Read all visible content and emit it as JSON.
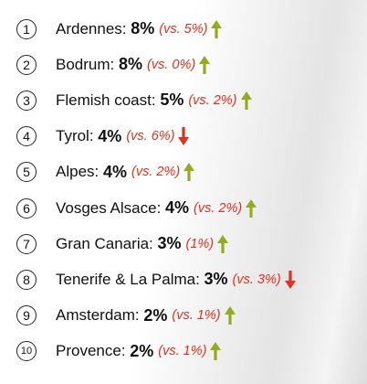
{
  "items": [
    {
      "rank": "1",
      "name": "Ardennes: ",
      "value": "8%",
      "comparison": "(vs. 5%)",
      "trend": "up"
    },
    {
      "rank": "2",
      "name": "Bodrum: ",
      "value": "8%",
      "comparison": "(vs. 0%)",
      "trend": "up"
    },
    {
      "rank": "3",
      "name": "Flemish coast: ",
      "value": "5%",
      "comparison": "(vs. 2%)",
      "trend": "up"
    },
    {
      "rank": "4",
      "name": "Tyrol: ",
      "value": "4%",
      "comparison": "(vs. 6%)",
      "trend": "down"
    },
    {
      "rank": "5",
      "name": "Alpes: ",
      "value": "4%",
      "comparison": "(vs. 2%)",
      "trend": "up"
    },
    {
      "rank": "6",
      "name": "Vosges Alsace: ",
      "value": "4%",
      "comparison": "(vs. 2%)",
      "trend": "up"
    },
    {
      "rank": "7",
      "name": "Gran Canaria: ",
      "value": "3%",
      "comparison": "(1%)",
      "trend": "up"
    },
    {
      "rank": "8",
      "name": "Tenerife & La Palma: ",
      "value": "3%",
      "comparison": "(vs. 3%)",
      "trend": "down"
    },
    {
      "rank": "9",
      "name": "Amsterdam: ",
      "value": "2%",
      "comparison": "(vs. 1%)",
      "trend": "up"
    },
    {
      "rank": "10",
      "name": "Provence: ",
      "value": "2%",
      "comparison": "(vs. 1%)",
      "trend": "up"
    }
  ]
}
